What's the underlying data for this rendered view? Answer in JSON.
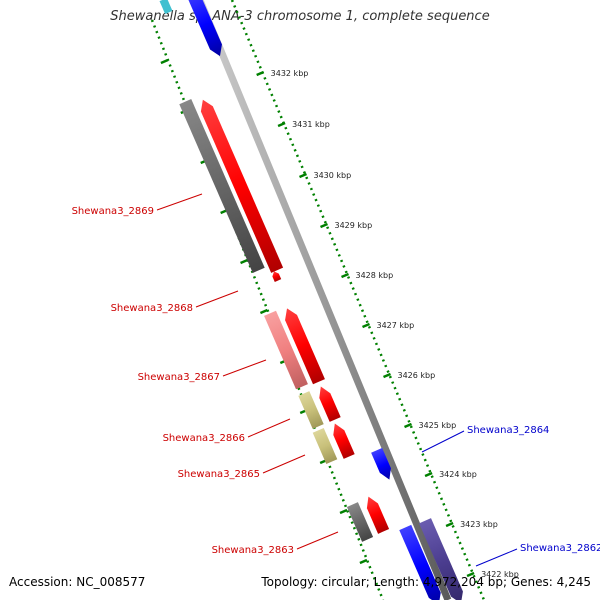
{
  "title": "Shewanella sp. ANA-3 chromosome 1, complete sequence",
  "footer": {
    "accession": "Accession: NC_008577",
    "summary": "Topology: circular; Length: 4,972,204 bp; Genes: 4,245"
  },
  "colors": {
    "forward_strand": "#ff0000",
    "reverse_strand": "#0000ff",
    "pseudo_gray": "#666666",
    "pink": "#f08080",
    "khaki": "#c8c07a",
    "indigo": "#4b3d8f",
    "cyan": "#40c0d0",
    "dotted_track": "#008000",
    "backbone": "#808080"
  },
  "ruler": [
    {
      "label": "3432 kbp"
    },
    {
      "label": "3431 kbp"
    },
    {
      "label": "3430 kbp"
    },
    {
      "label": "3429 kbp"
    },
    {
      "label": "3428 kbp"
    },
    {
      "label": "3427 kbp"
    },
    {
      "label": "3426 kbp"
    },
    {
      "label": "3425 kbp"
    },
    {
      "label": "3424 kbp"
    },
    {
      "label": "3423 kbp"
    },
    {
      "label": "3422 kbp"
    }
  ],
  "gene_labels": [
    {
      "name": "Shewana3_2869",
      "color": "#cc0000"
    },
    {
      "name": "Shewana3_2868",
      "color": "#cc0000"
    },
    {
      "name": "Shewana3_2867",
      "color": "#cc0000"
    },
    {
      "name": "Shewana3_2866",
      "color": "#cc0000"
    },
    {
      "name": "Shewana3_2865",
      "color": "#cc0000"
    },
    {
      "name": "Shewana3_2863",
      "color": "#cc0000"
    },
    {
      "name": "Shewana3_2864",
      "color": "#0000cc"
    },
    {
      "name": "Shewana3_2862",
      "color": "#0000cc"
    }
  ]
}
